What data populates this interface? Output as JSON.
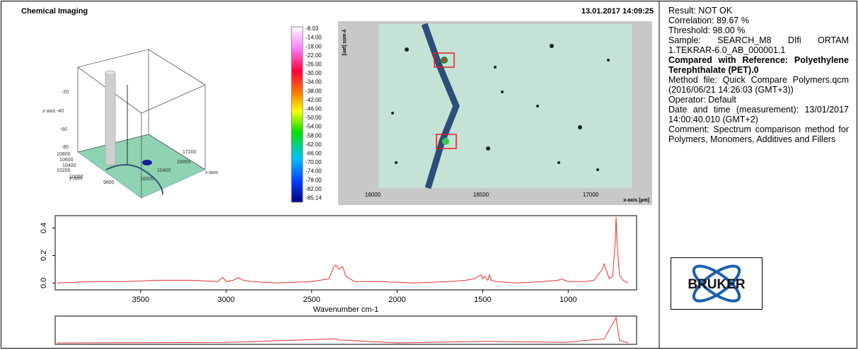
{
  "header": {
    "title": "Chemical Imaging",
    "timestamp": "13.01.2017  14:09:25"
  },
  "surface_plot": {
    "z_label": "z-axis",
    "z_ticks": [
      "-20",
      "-40",
      "-60",
      "-80"
    ],
    "y_label": "y-axis",
    "y_ticks": [
      "10800",
      "10600",
      "10400",
      "10200",
      "10000",
      "9800"
    ],
    "x_label": "x-axis",
    "x_ticks": [
      "17200",
      "16800",
      "16400",
      "16000"
    ]
  },
  "colorbar": {
    "labels": [
      "-8.03",
      "-14.00",
      "-18.00",
      "-22.00",
      "-26.00",
      "-30.00",
      "-34.00",
      "-38.00",
      "-42.00",
      "-46.00",
      "-50.00",
      "-54.00",
      "-58.00",
      "-62.00",
      "-66.00",
      "-70.00",
      "-74.00",
      "-78.00",
      "-82.00",
      "-85.14"
    ]
  },
  "image": {
    "x_label": "x-axis [µm]",
    "y_label": "y-axis [µm]",
    "x_ticks": [
      "16000",
      "16500",
      "17000"
    ]
  },
  "chart_data": [
    {
      "type": "line",
      "x_label": "Wavenumber cm-1",
      "color": "#e8302a",
      "x": [
        3990,
        3800,
        3600,
        3400,
        3200,
        3050,
        3020,
        3000,
        2960,
        2930,
        2900,
        2850,
        2700,
        2500,
        2400,
        2370,
        2360,
        2340,
        2320,
        2300,
        2250,
        2100,
        1900,
        1700,
        1600,
        1550,
        1510,
        1500,
        1490,
        1470,
        1460,
        1450,
        1420,
        1300,
        1150,
        1060,
        1040,
        1020,
        1000,
        900,
        850,
        800,
        790,
        780,
        760,
        740,
        725,
        720,
        715,
        700,
        680,
        650
      ],
      "values": [
        0.0,
        0.01,
        0.01,
        0.02,
        0.02,
        0.01,
        0.04,
        0.01,
        0.02,
        0.04,
        0.02,
        0.01,
        0.0,
        0.01,
        0.03,
        0.12,
        0.13,
        0.1,
        0.12,
        0.05,
        0.01,
        0.01,
        0.0,
        0.01,
        0.02,
        0.03,
        0.06,
        0.03,
        0.05,
        0.02,
        0.06,
        0.02,
        0.01,
        0.0,
        0.01,
        0.02,
        0.03,
        0.02,
        0.01,
        0.01,
        0.02,
        0.1,
        0.14,
        0.1,
        0.03,
        0.05,
        0.3,
        0.48,
        0.3,
        0.06,
        0.02,
        0.0
      ],
      "xlim": [
        4000,
        600
      ],
      "xticks": [
        3500,
        3000,
        2500,
        2000,
        1500,
        1000
      ],
      "ylim": [
        -0.05,
        0.49
      ],
      "yticks": [
        {
          "value": 0,
          "label": "0.0"
        },
        0.2,
        0.4
      ]
    },
    {
      "type": "line",
      "color": "#e8302a",
      "x": [
        3990,
        3000,
        2360,
        2340,
        2000,
        1500,
        1460,
        1020,
        790,
        720,
        700,
        650
      ],
      "values": [
        0,
        0.01,
        0.08,
        0.06,
        0,
        0.03,
        0.03,
        0.01,
        0.08,
        0.5,
        0.05,
        0
      ],
      "xlim": [
        4000,
        600
      ],
      "ylim": [
        0,
        0.5
      ]
    }
  ],
  "report": {
    "lines": [
      "Result: NOT OK",
      "Correlation: 89.67 %",
      "Threshold: 98.00 %",
      "Sample: SEARCH_M8 DIfi ORTAM 1.TEKRAR-6.0_AB_000001.1"
    ],
    "reference": "Compared with Reference: Polyethylene Terephthalate (PET).0",
    "details": [
      "Method file: Quick Compare Polymers.qcm (2016/06/21 14:26:03 (GMT+3))",
      "Operator: Default",
      "Date and time (measurement): 13/01/2017 14:00:40.010 (GMT+2)",
      "Comment: Spectrum comparison method for Polymers, Monomers, Additives and Fillers"
    ],
    "logo": "BRUKER"
  }
}
